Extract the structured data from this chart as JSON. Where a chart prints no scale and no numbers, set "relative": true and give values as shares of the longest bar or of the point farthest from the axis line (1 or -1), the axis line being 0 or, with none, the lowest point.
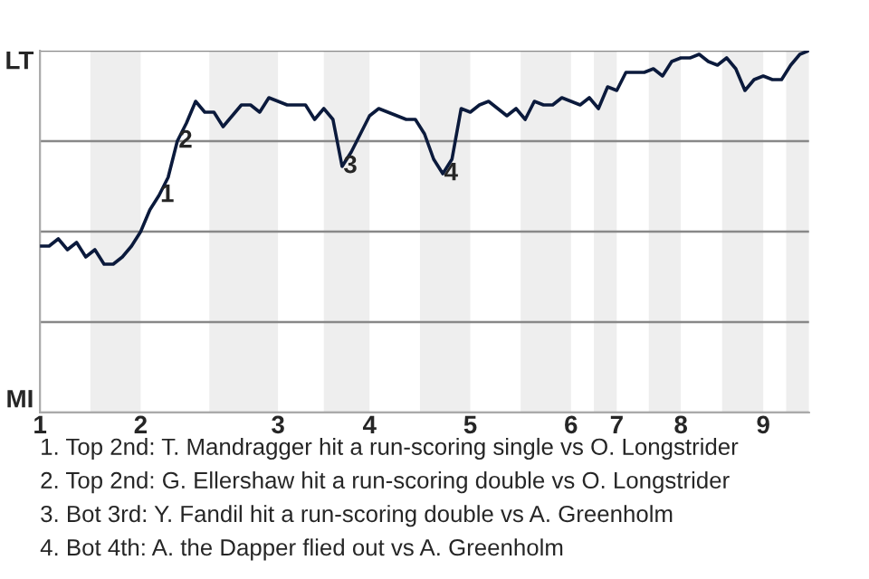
{
  "chart_data": {
    "type": "line",
    "relative": true,
    "categories": [
      "1",
      null,
      null,
      null,
      null,
      null,
      null,
      null,
      null,
      null,
      null,
      "2",
      null,
      null,
      null,
      null,
      null,
      null,
      null,
      null,
      null,
      null,
      null,
      null,
      null,
      null,
      "3",
      null,
      null,
      null,
      null,
      null,
      null,
      null,
      null,
      null,
      "4",
      null,
      null,
      null,
      null,
      null,
      null,
      null,
      null,
      null,
      null,
      "5",
      null,
      null,
      null,
      null,
      null,
      null,
      null,
      null,
      null,
      null,
      "6",
      null,
      null,
      null,
      null,
      "7",
      null,
      null,
      null,
      null,
      null,
      null,
      "8",
      null,
      null,
      null,
      null,
      null,
      null,
      null,
      null,
      "9",
      null,
      null,
      null,
      null,
      null
    ],
    "series": [
      {
        "color": "#0b1a3c",
        "values": [
          0.46,
          0.46,
          0.48,
          0.45,
          0.47,
          0.43,
          0.45,
          0.41,
          0.41,
          0.43,
          0.46,
          0.5,
          0.56,
          0.6,
          0.65,
          0.75,
          0.8,
          0.86,
          0.83,
          0.83,
          0.79,
          0.82,
          0.85,
          0.85,
          0.83,
          0.87,
          0.86,
          0.85,
          0.85,
          0.85,
          0.81,
          0.84,
          0.81,
          0.68,
          0.72,
          0.77,
          0.82,
          0.84,
          0.83,
          0.82,
          0.81,
          0.81,
          0.77,
          0.7,
          0.66,
          0.7,
          0.84,
          0.83,
          0.85,
          0.86,
          0.84,
          0.82,
          0.84,
          0.81,
          0.86,
          0.85,
          0.85,
          0.87,
          0.86,
          0.85,
          0.87,
          0.84,
          0.9,
          0.89,
          0.94,
          0.94,
          0.94,
          0.95,
          0.93,
          0.97,
          0.98,
          0.98,
          0.99,
          0.97,
          0.96,
          0.98,
          0.95,
          0.89,
          0.92,
          0.93,
          0.92,
          0.92,
          0.96,
          0.99,
          1.0
        ]
      }
    ],
    "grid": "y",
    "annotations": [
      "LT",
      "MI",
      {
        "text": "1",
        "y": 0.6
      },
      {
        "text": "2",
        "y": 0.75
      },
      {
        "text": "3",
        "y": 0.68
      },
      {
        "text": "4",
        "y": 0.66
      },
      "1. Top 2nd: T. Mandragger hit a run-scoring single vs O. Longstrider",
      "2. Top 2nd: G. Ellershaw hit a run-scoring double vs O. Longstrider",
      "3. Bot 3rd: Y. Fandil hit a run-scoring double vs A. Greenholm",
      "4. Bot 4th: A. the Dapper flied out vs A. Greenholm"
    ]
  }
}
